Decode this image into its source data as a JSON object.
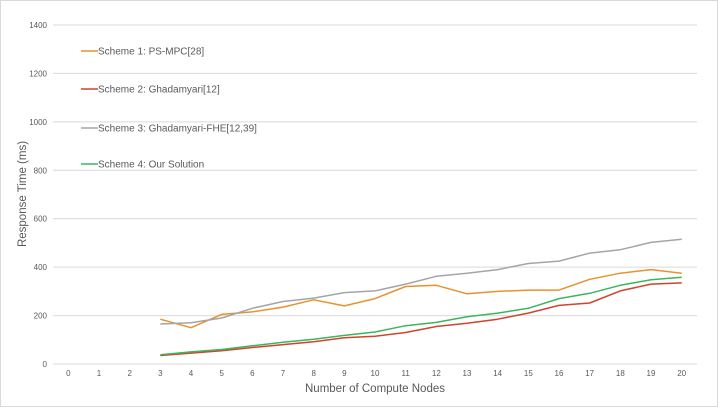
{
  "chart_data": {
    "type": "line",
    "xlabel": "Number of Compute Nodes",
    "ylabel": "Response Time (ms)",
    "xlim": [
      0,
      20
    ],
    "ylim": [
      0,
      1400
    ],
    "x_ticks": [
      "0",
      "1",
      "2",
      "3",
      "4",
      "5",
      "6",
      "7",
      "8",
      "9",
      "10",
      "11",
      "12",
      "13",
      "14",
      "15",
      "16",
      "17",
      "18",
      "19",
      "20"
    ],
    "y_ticks": [
      "0",
      "200",
      "400",
      "600",
      "800",
      "1000",
      "1200",
      "1400"
    ],
    "grid": "horizontal",
    "legend_position": "top-left",
    "series": [
      {
        "name": "Scheme 1: PS-MPC[28]",
        "color": "#e8922e",
        "x": [
          3,
          4,
          5,
          6,
          7,
          8,
          9,
          10,
          11,
          12,
          13,
          14,
          15,
          16,
          17,
          18,
          19,
          20
        ],
        "values": [
          185,
          150,
          205,
          215,
          235,
          265,
          240,
          270,
          320,
          325,
          290,
          300,
          305,
          305,
          350,
          375,
          390,
          375
        ]
      },
      {
        "name": "Scheme 2: Ghadamyari[12]",
        "color": "#d0442b",
        "x": [
          3,
          4,
          5,
          6,
          7,
          8,
          9,
          10,
          11,
          12,
          13,
          14,
          15,
          16,
          17,
          18,
          19,
          20
        ],
        "values": [
          35,
          45,
          55,
          68,
          80,
          92,
          108,
          115,
          130,
          155,
          168,
          185,
          210,
          242,
          252,
          302,
          330,
          335
        ]
      },
      {
        "name": "Scheme 3: Ghadamyari-FHE[12,39]",
        "color": "#a5a5a5",
        "x": [
          3,
          4,
          5,
          6,
          7,
          8,
          9,
          10,
          11,
          12,
          13,
          14,
          15,
          16,
          17,
          18,
          19,
          20
        ],
        "values": [
          165,
          170,
          190,
          230,
          258,
          272,
          295,
          302,
          330,
          362,
          375,
          390,
          415,
          425,
          458,
          472,
          502,
          515
        ]
      },
      {
        "name": "Scheme 4: Our Solution",
        "color": "#3cb55d",
        "x": [
          3,
          4,
          5,
          6,
          7,
          8,
          9,
          10,
          11,
          12,
          13,
          14,
          15,
          16,
          17,
          18,
          19,
          20
        ],
        "values": [
          38,
          50,
          60,
          75,
          90,
          102,
          118,
          132,
          158,
          172,
          195,
          210,
          230,
          270,
          292,
          325,
          348,
          358
        ]
      }
    ]
  }
}
